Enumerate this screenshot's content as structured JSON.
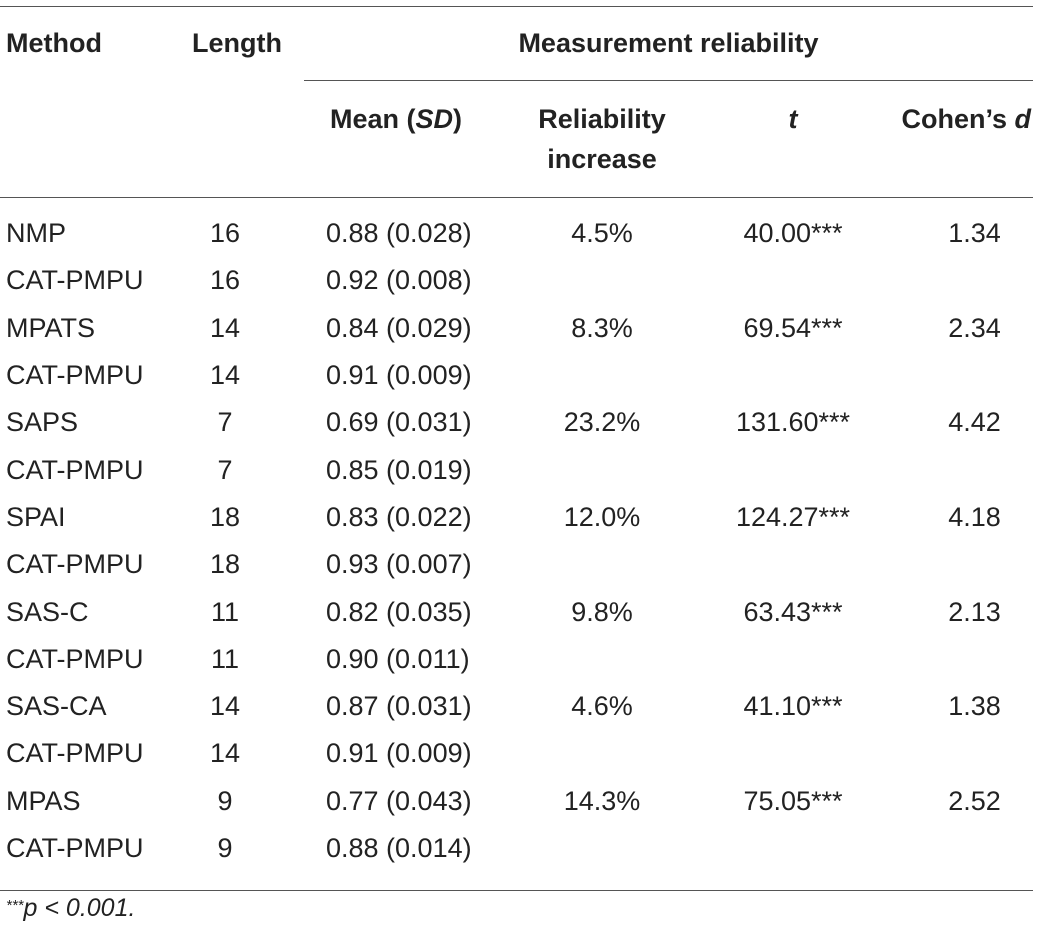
{
  "header": {
    "method": "Method",
    "length": "Length",
    "group": "Measurement reliability",
    "mean_prefix": "Mean (",
    "mean_sd": "SD",
    "mean_suffix": ")",
    "reliability_line1": "Reliability",
    "reliability_line2": "increase",
    "t": "t",
    "cohens_prefix": "Cohen’s ",
    "cohens_d": "d"
  },
  "rows": [
    {
      "method": "NMP",
      "length": "16",
      "mean": "0.88 (0.028)",
      "increase": "4.5%",
      "t": "40.00***",
      "d": "1.34"
    },
    {
      "method": "CAT-PMPU",
      "length": "16",
      "mean": "0.92 (0.008)",
      "increase": "",
      "t": "",
      "d": ""
    },
    {
      "method": "MPATS",
      "length": "14",
      "mean": "0.84 (0.029)",
      "increase": "8.3%",
      "t": "69.54***",
      "d": "2.34"
    },
    {
      "method": "CAT-PMPU",
      "length": "14",
      "mean": "0.91 (0.009)",
      "increase": "",
      "t": "",
      "d": ""
    },
    {
      "method": "SAPS",
      "length": "7",
      "mean": "0.69 (0.031)",
      "increase": "23.2%",
      "t": "131.60***",
      "d": "4.42"
    },
    {
      "method": "CAT-PMPU",
      "length": "7",
      "mean": "0.85 (0.019)",
      "increase": "",
      "t": "",
      "d": ""
    },
    {
      "method": "SPAI",
      "length": "18",
      "mean": "0.83 (0.022)",
      "increase": "12.0%",
      "t": "124.27***",
      "d": "4.18"
    },
    {
      "method": "CAT-PMPU",
      "length": "18",
      "mean": "0.93 (0.007)",
      "increase": "",
      "t": "",
      "d": ""
    },
    {
      "method": "SAS-C",
      "length": "11",
      "mean": "0.82 (0.035)",
      "increase": "9.8%",
      "t": "63.43***",
      "d": "2.13"
    },
    {
      "method": "CAT-PMPU",
      "length": "11",
      "mean": "0.90 (0.011)",
      "increase": "",
      "t": "",
      "d": ""
    },
    {
      "method": "SAS-CA",
      "length": "14",
      "mean": "0.87 (0.031)",
      "increase": "4.6%",
      "t": "41.10***",
      "d": "1.38"
    },
    {
      "method": "CAT-PMPU",
      "length": "14",
      "mean": "0.91 (0.009)",
      "increase": "",
      "t": "",
      "d": ""
    },
    {
      "method": "MPAS",
      "length": "9",
      "mean": "0.77 (0.043)",
      "increase": "14.3%",
      "t": "75.05***",
      "d": "2.52"
    },
    {
      "method": "CAT-PMPU",
      "length": "9",
      "mean": "0.88 (0.014)",
      "increase": "",
      "t": "",
      "d": ""
    }
  ],
  "footnote": {
    "marker": "***",
    "text": "p < 0.001."
  }
}
